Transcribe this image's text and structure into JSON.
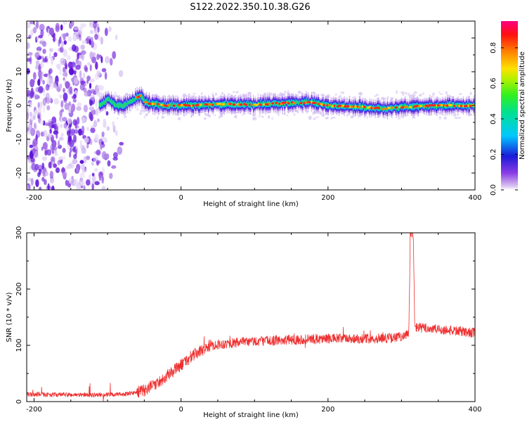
{
  "figure": {
    "title": "S122.2022.350.10.38.G26"
  },
  "chart_data": [
    {
      "type": "heatmap",
      "title": "",
      "xlabel": "Height of straight line (km)",
      "ylabel": "Frequency (Hz)",
      "xlim": [
        -210,
        400
      ],
      "ylim": [
        -25,
        25
      ],
      "xticks": [
        -200,
        0,
        200,
        400
      ],
      "yticks": [
        -20,
        -10,
        0,
        10,
        20
      ],
      "ridge_x": [
        -112,
        -105,
        -100,
        -95,
        -90,
        -85,
        -80,
        -70,
        -60,
        -55,
        -50,
        -40,
        -20,
        0,
        50,
        100,
        150,
        175,
        200,
        250,
        275,
        300,
        350,
        400
      ],
      "ridge_freq": [
        0,
        1,
        2,
        1,
        0.3,
        0,
        0,
        1,
        2.5,
        3,
        1,
        0.5,
        0,
        0,
        0.3,
        0.3,
        0.8,
        1,
        0,
        -0.5,
        -1,
        -0.5,
        0,
        0
      ],
      "noise_region_x": [
        -210,
        -90
      ],
      "colorbar": {
        "label": "Normalized spectral amplitude",
        "range": [
          0,
          0.95
        ],
        "ticks": [
          "0.0",
          "0.2",
          "0.4",
          "0.6",
          "0.8"
        ]
      },
      "grid": false
    },
    {
      "type": "line",
      "title": "",
      "xlabel": "Height of straight line (km)",
      "ylabel": "SNR (10 * v/v)",
      "xlim": [
        -210,
        400
      ],
      "ylim": [
        0,
        300
      ],
      "xticks": [
        -200,
        0,
        200,
        400
      ],
      "yticks": [
        0,
        100,
        200,
        300
      ],
      "color": "#ee3030",
      "series": [
        {
          "x": [
            -210,
            -150,
            -100,
            -70,
            -50,
            -30,
            -10,
            0,
            20,
            40,
            60,
            100,
            150,
            200,
            250,
            290,
            305,
            310,
            312,
            314,
            316,
            318,
            320,
            350,
            380,
            400
          ],
          "values": [
            13,
            12,
            12,
            14,
            20,
            35,
            55,
            65,
            85,
            100,
            103,
            107,
            110,
            112,
            112,
            113,
            118,
            120,
            300,
            300,
            300,
            130,
            132,
            128,
            125,
            122
          ]
        }
      ],
      "grid": false
    }
  ]
}
